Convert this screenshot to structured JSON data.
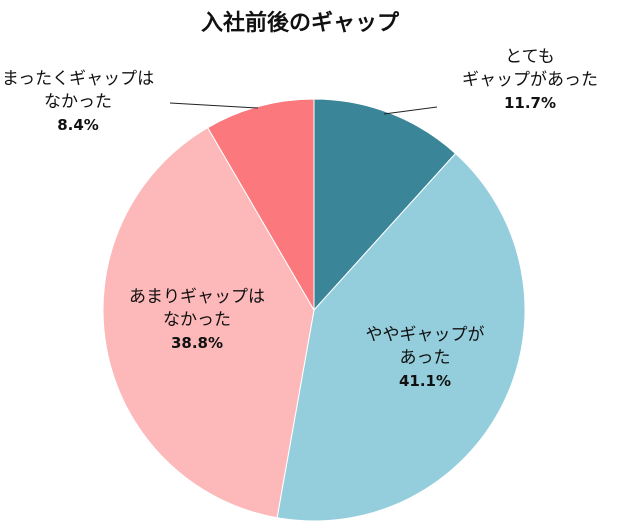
{
  "chart_data": {
    "type": "pie",
    "title": "入社前後のギャップ",
    "slices": [
      {
        "label_lines": [
          "とても",
          "ギャップがあった"
        ],
        "value": 11.7,
        "value_label": "11.7%",
        "color": "#3a8698"
      },
      {
        "label_lines": [
          "ややギャップが",
          "あった"
        ],
        "value": 41.1,
        "value_label": "41.1%",
        "color": "#94cedd"
      },
      {
        "label_lines": [
          "あまりギャップは",
          "なかった"
        ],
        "value": 38.8,
        "value_label": "38.8%",
        "color": "#fdb8ba"
      },
      {
        "label_lines": [
          "まったくギャップは",
          "なかった"
        ],
        "value": 8.4,
        "value_label": "8.4%",
        "color": "#fb787d"
      }
    ],
    "start_angle": "12 o'clock",
    "direction": "clockwise",
    "legend": "none"
  }
}
